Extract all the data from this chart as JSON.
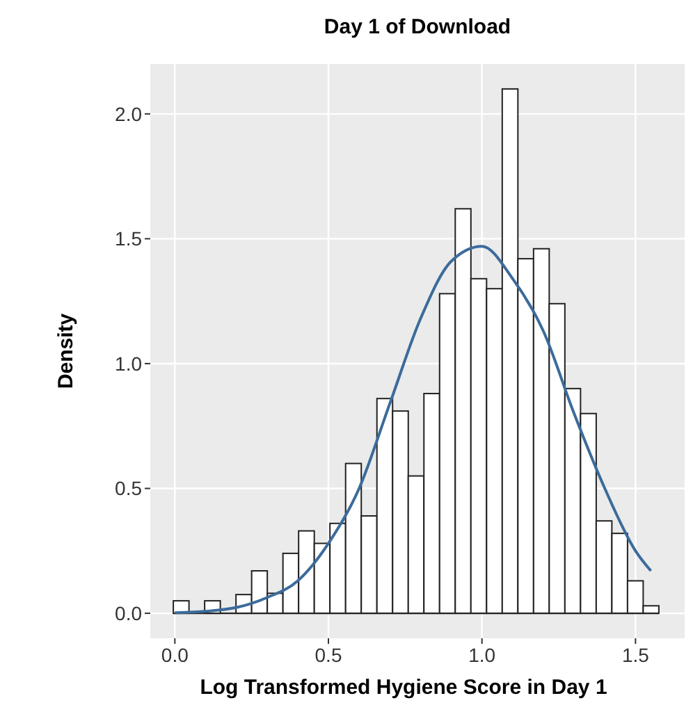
{
  "chart_data": {
    "type": "histogram",
    "title": "Day 1 of Download",
    "xlabel": "Log Transformed Hygiene Score in Day 1",
    "ylabel": "Density",
    "bins": [
      -0.005,
      0.046,
      0.097,
      0.148,
      0.199,
      0.25,
      0.301,
      0.352,
      0.403,
      0.454,
      0.505,
      0.556,
      0.607,
      0.658,
      0.709,
      0.76,
      0.811,
      0.862,
      0.913,
      0.964,
      1.015,
      1.066,
      1.117,
      1.168,
      1.219,
      1.27,
      1.321,
      1.372,
      1.423,
      1.474,
      1.525,
      1.576
    ],
    "values": [
      0.05,
      0,
      0.05,
      0,
      0.075,
      0.17,
      0.08,
      0.24,
      0.33,
      0.28,
      0.36,
      0.6,
      0.39,
      0.86,
      0.81,
      0.55,
      0.88,
      1.28,
      1.62,
      1.34,
      1.3,
      2.1,
      1.42,
      1.46,
      1.24,
      0.9,
      0.8,
      0.37,
      0.32,
      0.13,
      0.03
    ],
    "color": "#ffffff",
    "series": [
      {
        "type": "line",
        "color": "#3b6b9b",
        "x": [
          0,
          0.1,
          0.2,
          0.3,
          0.4,
          0.5,
          0.6,
          0.7,
          0.8,
          0.9,
          1.0,
          1.1,
          1.2,
          1.3,
          1.4,
          1.5,
          1.55
        ],
        "values": [
          0.002,
          0.008,
          0.023,
          0.063,
          0.13,
          0.28,
          0.5,
          0.84,
          1.18,
          1.41,
          1.47,
          1.34,
          1.13,
          0.8,
          0.5,
          0.25,
          0.17
        ]
      }
    ],
    "xlim": [
      -0.08,
      1.66
    ],
    "ylim": [
      -0.1,
      2.2
    ],
    "xticks": [
      {
        "value": 0,
        "label": "0.0"
      },
      {
        "value": 0.5,
        "label": "0.5"
      },
      {
        "value": 1,
        "label": "1.0"
      },
      {
        "value": 1.5,
        "label": "1.5"
      }
    ],
    "yticks": [
      {
        "value": 0,
        "label": "0.0"
      },
      {
        "value": 0.5,
        "label": "0.5"
      },
      {
        "value": 1,
        "label": "1.0"
      },
      {
        "value": 1.5,
        "label": "1.5"
      },
      {
        "value": 2,
        "label": "2.0"
      }
    ],
    "grid": true
  }
}
